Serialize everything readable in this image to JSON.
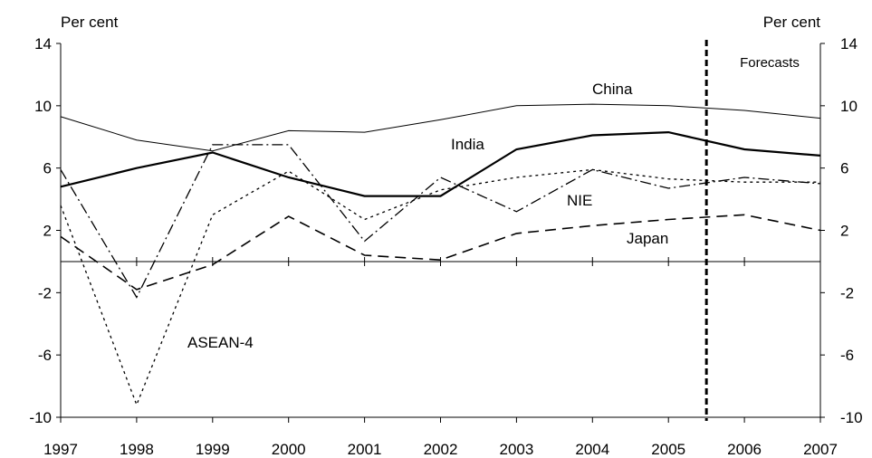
{
  "chart_data": {
    "type": "line",
    "left_axis_label": "Per cent",
    "right_axis_label": "Per cent",
    "forecast_note": "Forecasts",
    "forecast_start_after": 2005,
    "ylim": [
      -10,
      14
    ],
    "yticks": [
      -10,
      -6,
      -2,
      2,
      6,
      10,
      14
    ],
    "x": [
      1997,
      1998,
      1999,
      2000,
      2001,
      2002,
      2003,
      2004,
      2005,
      2006,
      2007
    ],
    "grid": false,
    "series": [
      {
        "name": "China",
        "style": "thin-solid",
        "values": [
          9.3,
          7.8,
          7.1,
          8.4,
          8.3,
          9.1,
          10.0,
          10.1,
          10.0,
          9.7,
          9.2
        ]
      },
      {
        "name": "India",
        "style": "thick-solid",
        "values": [
          4.8,
          6.0,
          7.0,
          5.4,
          4.2,
          4.2,
          7.2,
          8.1,
          8.3,
          7.2,
          6.8
        ]
      },
      {
        "name": "NIE",
        "style": "dash-dot",
        "values": [
          5.9,
          -2.3,
          7.5,
          7.5,
          1.3,
          5.4,
          3.2,
          5.9,
          4.7,
          5.4,
          5.0
        ]
      },
      {
        "name": "Japan",
        "style": "dashed",
        "values": [
          1.6,
          -1.8,
          -0.2,
          2.9,
          0.4,
          0.1,
          1.8,
          2.3,
          2.7,
          3.0,
          2.0
        ]
      },
      {
        "name": "ASEAN-4",
        "style": "dotted",
        "values": [
          3.6,
          -9.2,
          3.0,
          5.8,
          2.7,
          4.6,
          5.4,
          5.9,
          5.3,
          5.1,
          5.1
        ]
      }
    ]
  }
}
